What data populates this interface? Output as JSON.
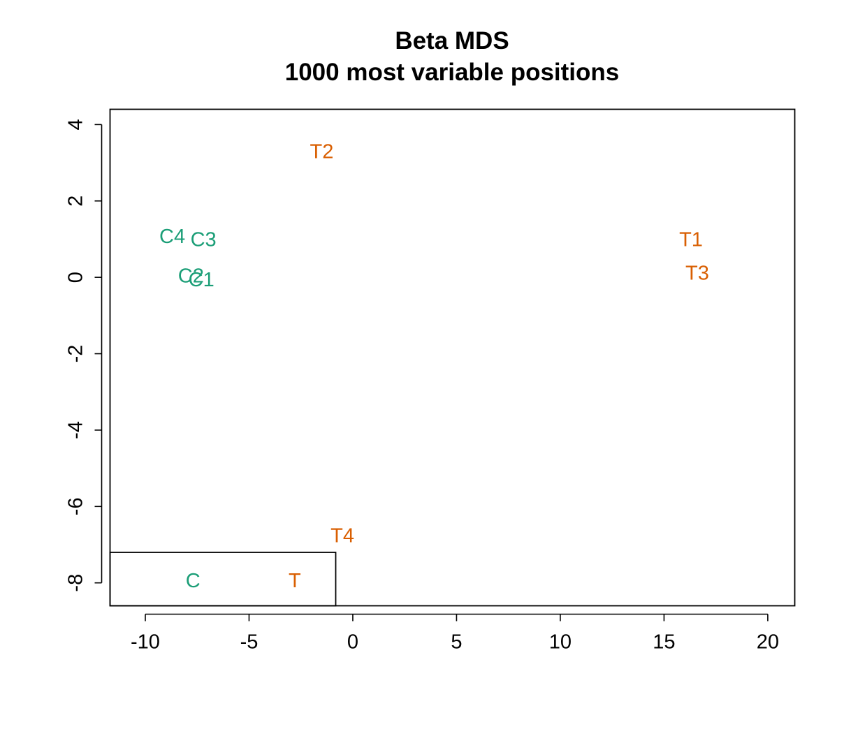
{
  "chart_data": {
    "type": "scatter",
    "title": "Beta MDS",
    "subtitle": "1000 most variable positions",
    "xlabel": "",
    "ylabel": "",
    "xlim": [
      -11.7,
      21.3
    ],
    "ylim": [
      -8.6,
      4.4
    ],
    "x_ticks": [
      -10,
      -5,
      0,
      5,
      10,
      15,
      20
    ],
    "y_ticks": [
      -8,
      -6,
      -4,
      -2,
      0,
      2,
      4
    ],
    "grid": false,
    "colors": {
      "C": "#1b9e77",
      "T": "#d95f02"
    },
    "points": [
      {
        "label": "C1",
        "group": "C",
        "x": -7.3,
        "y": -0.05
      },
      {
        "label": "C2",
        "group": "C",
        "x": -7.8,
        "y": 0.05
      },
      {
        "label": "C3",
        "group": "C",
        "x": -7.2,
        "y": 1.0
      },
      {
        "label": "C4",
        "group": "C",
        "x": -8.7,
        "y": 1.08
      },
      {
        "label": "T1",
        "group": "T",
        "x": 16.3,
        "y": 1.0
      },
      {
        "label": "T2",
        "group": "T",
        "x": -1.5,
        "y": 3.3
      },
      {
        "label": "T3",
        "group": "T",
        "x": 16.6,
        "y": 0.12
      },
      {
        "label": "T4",
        "group": "T",
        "x": -0.5,
        "y": -6.75
      }
    ],
    "legend": {
      "placement": "bottom-left",
      "entries": [
        {
          "label": "C",
          "group": "C"
        },
        {
          "label": "T",
          "group": "T"
        }
      ]
    }
  }
}
